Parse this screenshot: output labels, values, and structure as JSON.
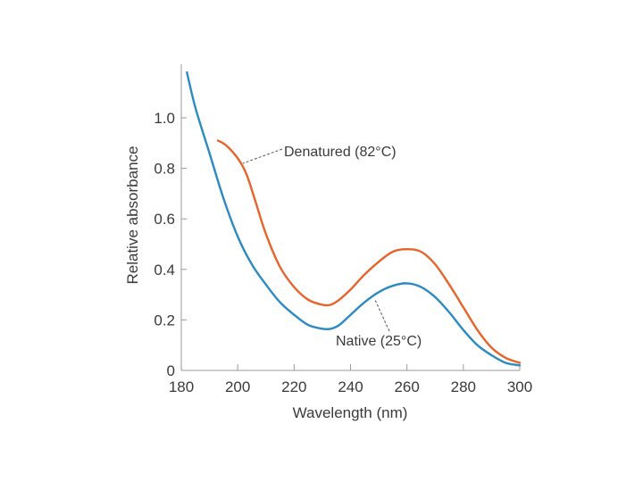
{
  "chart_data": {
    "type": "line",
    "title": "",
    "xlabel": "Wavelength (nm)",
    "ylabel": "Relative absorbance",
    "xlim": [
      180,
      300
    ],
    "ylim": [
      0,
      1.2
    ],
    "grid": false,
    "x_ticks": [
      "180",
      "200",
      "220",
      "240",
      "260",
      "280",
      "300"
    ],
    "y_ticks": [
      "0",
      "0.2",
      "0.4",
      "0.6",
      "0.8",
      "1.0"
    ],
    "series": [
      {
        "name": "Denatured (82°C)",
        "color": "#e8632a",
        "x": [
          193,
          196,
          200,
          203,
          206,
          210,
          215,
          220,
          225,
          230,
          233,
          236,
          240,
          245,
          250,
          255,
          260,
          265,
          270,
          275,
          280,
          285,
          290,
          295,
          300
        ],
        "y": [
          0.91,
          0.89,
          0.84,
          0.78,
          0.68,
          0.54,
          0.41,
          0.33,
          0.28,
          0.26,
          0.26,
          0.28,
          0.32,
          0.38,
          0.43,
          0.47,
          0.48,
          0.47,
          0.42,
          0.34,
          0.25,
          0.16,
          0.09,
          0.05,
          0.03
        ]
      },
      {
        "name": "Native (25°C)",
        "color": "#2b8ac2",
        "x": [
          182,
          185,
          190,
          195,
          200,
          205,
          210,
          215,
          220,
          225,
          230,
          233,
          236,
          240,
          245,
          250,
          255,
          260,
          265,
          270,
          275,
          280,
          285,
          290,
          295,
          300
        ],
        "y": [
          1.18,
          1.04,
          0.86,
          0.68,
          0.53,
          0.42,
          0.34,
          0.27,
          0.22,
          0.18,
          0.165,
          0.165,
          0.18,
          0.22,
          0.27,
          0.31,
          0.335,
          0.345,
          0.33,
          0.29,
          0.23,
          0.16,
          0.1,
          0.06,
          0.03,
          0.02
        ]
      }
    ],
    "annotations": [
      {
        "text": "Denatured (82°C)",
        "series": 0,
        "x": 203,
        "y": 0.82
      },
      {
        "text": "Native (25°C)",
        "series": 1,
        "x": 248,
        "y": 0.27
      }
    ]
  }
}
